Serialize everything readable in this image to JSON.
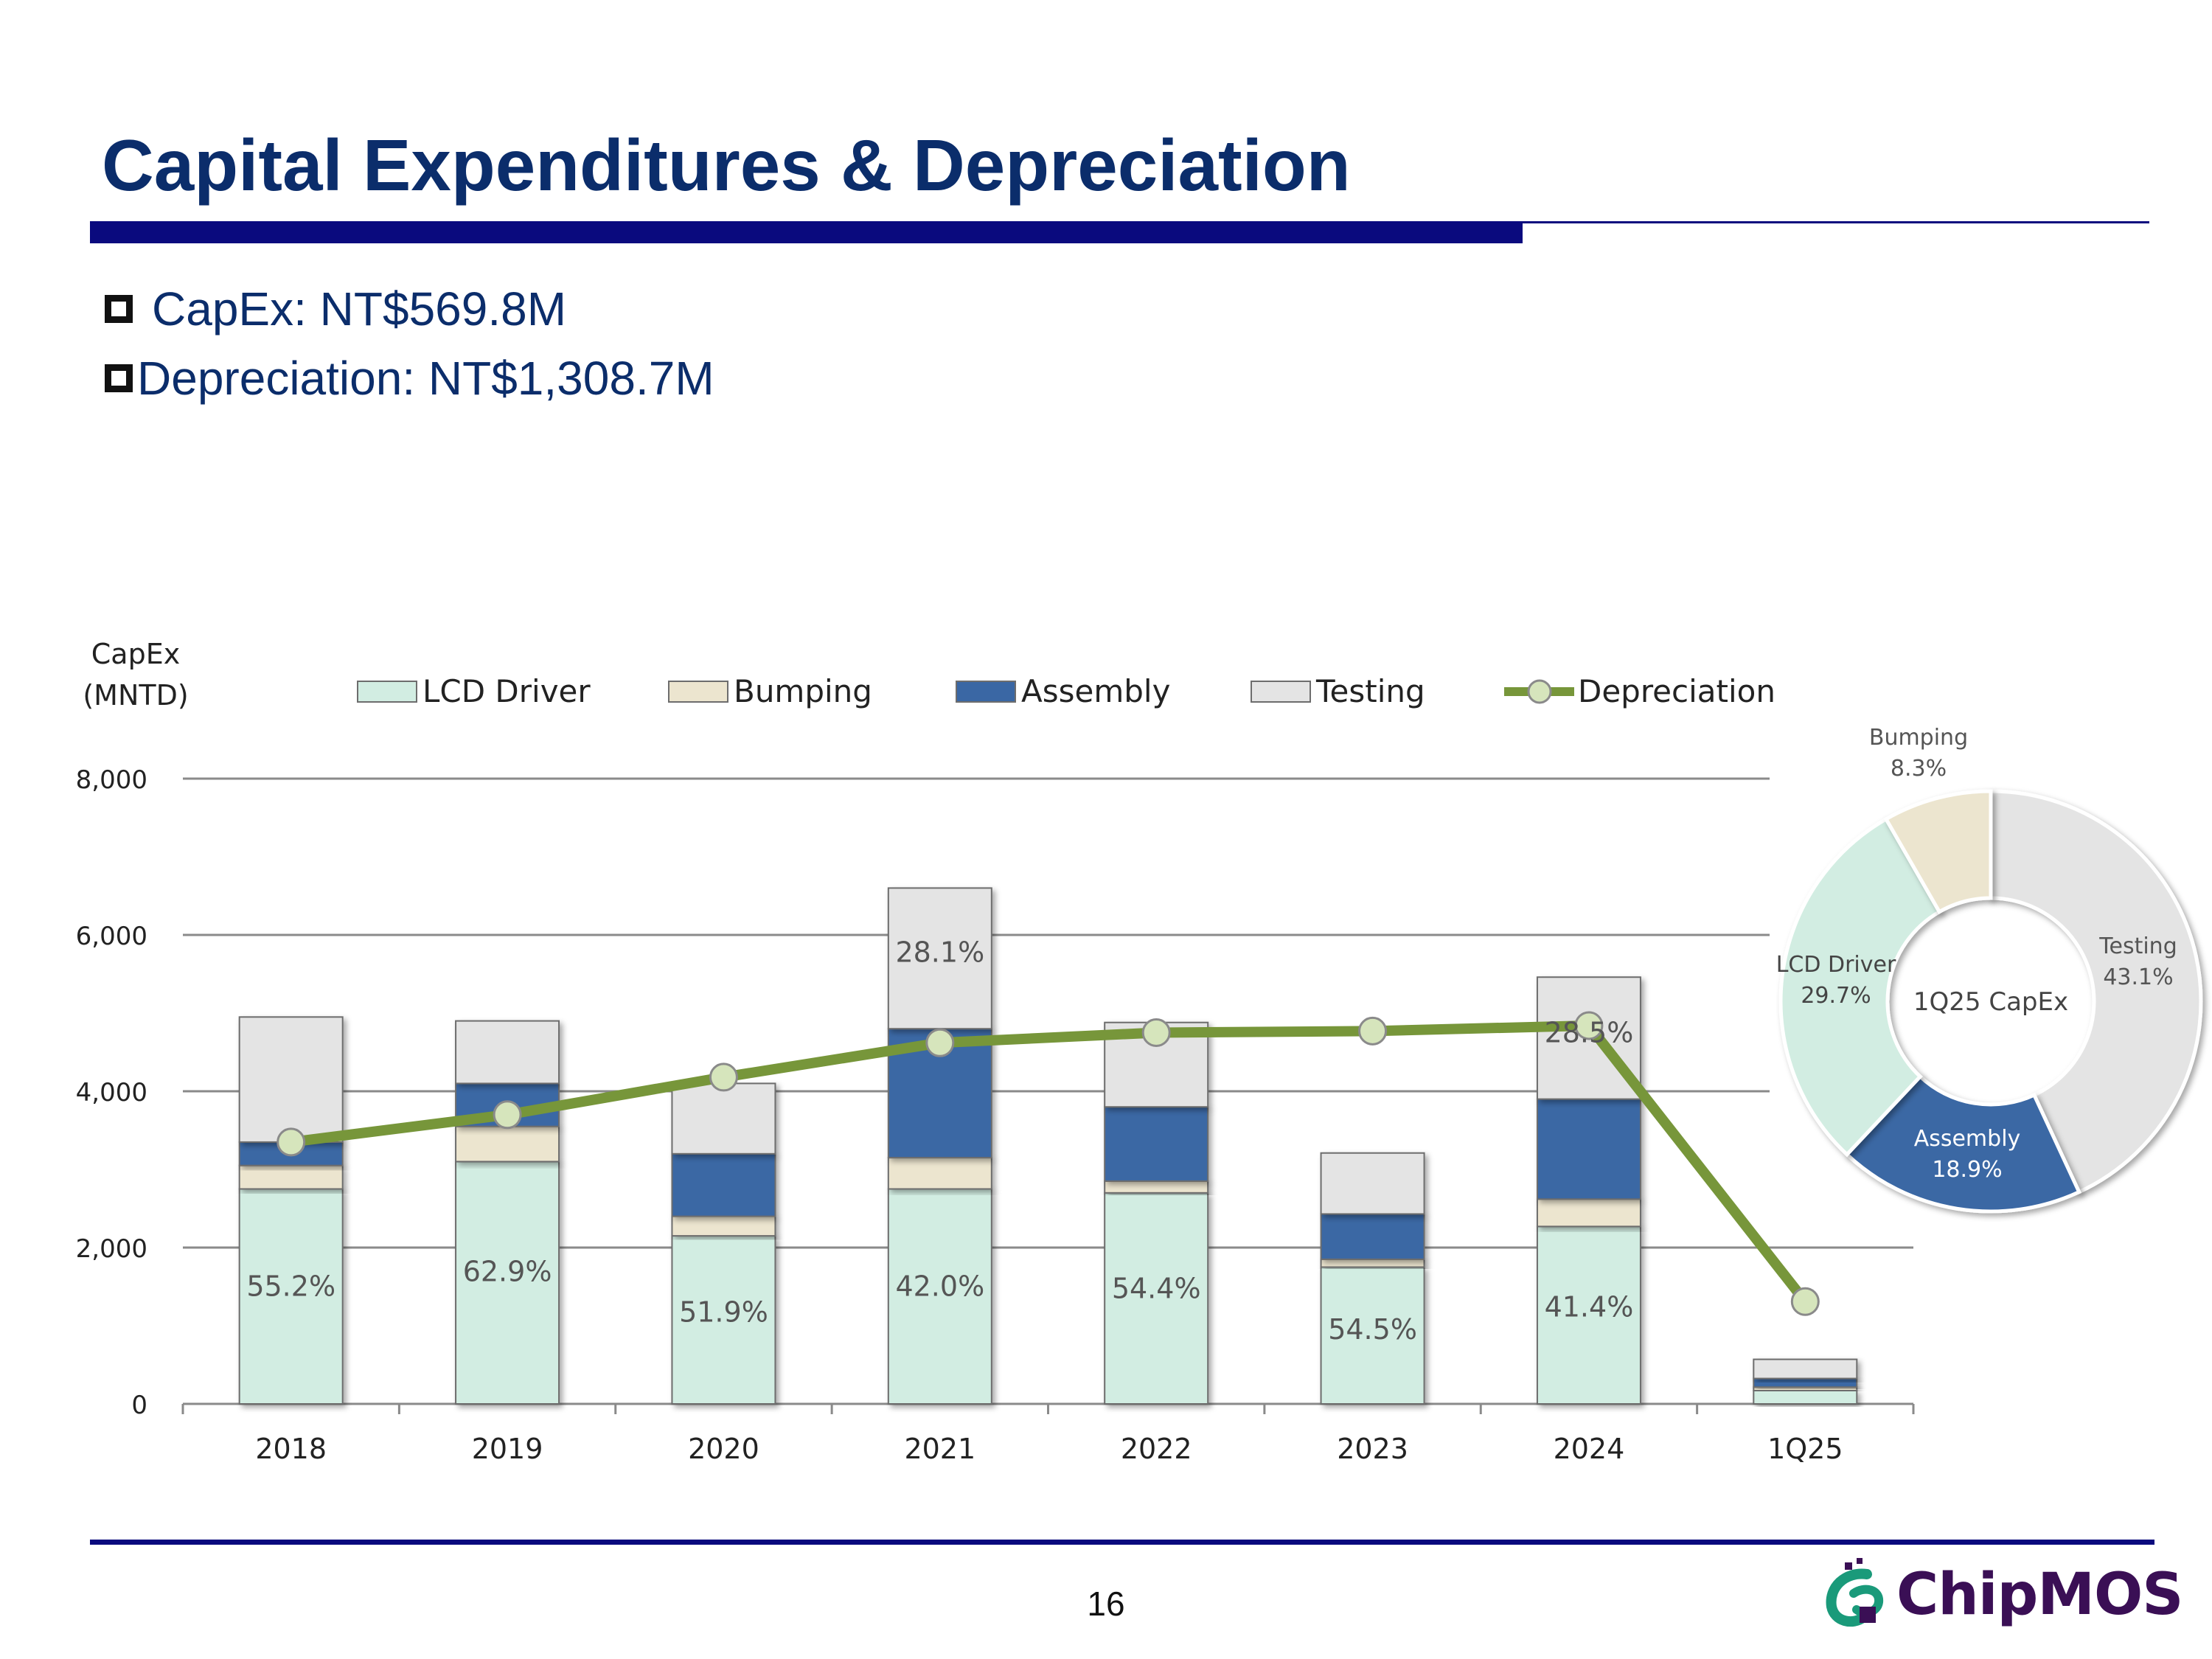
{
  "slide": {
    "title": "Capital Expenditures & Depreciation",
    "bullets": [
      "CapEx: NT$569.8M",
      "Depreciation: NT$1,308.7M"
    ],
    "page_number": "16",
    "logo_text": "ChipMOS"
  },
  "colors": {
    "title": "#0b2d6b",
    "rule": "#0a0a7e",
    "lcd_driver": "#d2ede2",
    "bumping": "#ece5cf",
    "assembly": "#3a67a4",
    "testing": "#e4e4e4",
    "depreciation": "#77963a",
    "depreciation_marker": "#d6e5bc"
  },
  "chart_data": [
    {
      "type": "bar",
      "stacked": true,
      "ylabel": "CapEx\n(MNTD)",
      "ylim": [
        0,
        8000
      ],
      "yticks": [
        0,
        2000,
        4000,
        6000,
        8000
      ],
      "ytick_labels": [
        "0",
        "2,000",
        "4,000",
        "6,000",
        "8,000"
      ],
      "grid": true,
      "legend": "top",
      "categories": [
        "2018",
        "2019",
        "2020",
        "2021",
        "2022",
        "2023",
        "2024",
        "1Q25"
      ],
      "series": [
        {
          "name": "LCD Driver",
          "values": [
            2750,
            3100,
            2150,
            2750,
            2700,
            1750,
            2270,
            170
          ]
        },
        {
          "name": "Bumping",
          "values": [
            300,
            450,
            250,
            400,
            150,
            100,
            350,
            45
          ]
        },
        {
          "name": "Assembly",
          "values": [
            300,
            550,
            800,
            1650,
            950,
            580,
            1280,
            110
          ]
        },
        {
          "name": "Testing",
          "values": [
            1600,
            800,
            900,
            1800,
            1080,
            780,
            1560,
            245
          ]
        }
      ],
      "line_series": {
        "name": "Depreciation",
        "values": [
          3350,
          3700,
          4180,
          4620,
          4750,
          4770,
          4840,
          1309
        ]
      },
      "data_labels": [
        {
          "category": "2018",
          "series": "LCD Driver",
          "text": "55.2%"
        },
        {
          "category": "2019",
          "series": "LCD Driver",
          "text": "62.9%"
        },
        {
          "category": "2020",
          "series": "LCD Driver",
          "text": "51.9%"
        },
        {
          "category": "2021",
          "series": "LCD Driver",
          "text": "42.0%"
        },
        {
          "category": "2022",
          "series": "LCD Driver",
          "text": "54.4%"
        },
        {
          "category": "2023",
          "series": "LCD Driver",
          "text": "54.5%"
        },
        {
          "category": "2024",
          "series": "LCD Driver",
          "text": "41.4%"
        },
        {
          "category": "2021",
          "series": "Testing",
          "text": "28.1%"
        },
        {
          "category": "2024",
          "series": "Testing",
          "text": "28.5%"
        }
      ]
    },
    {
      "type": "pie",
      "donut": true,
      "title": "1Q25 CapEx",
      "slices": [
        {
          "name": "Testing",
          "value": 43.1,
          "label": "43.1%"
        },
        {
          "name": "Assembly",
          "value": 18.9,
          "label": "18.9%"
        },
        {
          "name": "LCD Driver",
          "value": 29.7,
          "label": "29.7%"
        },
        {
          "name": "Bumping",
          "value": 8.3,
          "label": "8.3%"
        }
      ]
    }
  ]
}
